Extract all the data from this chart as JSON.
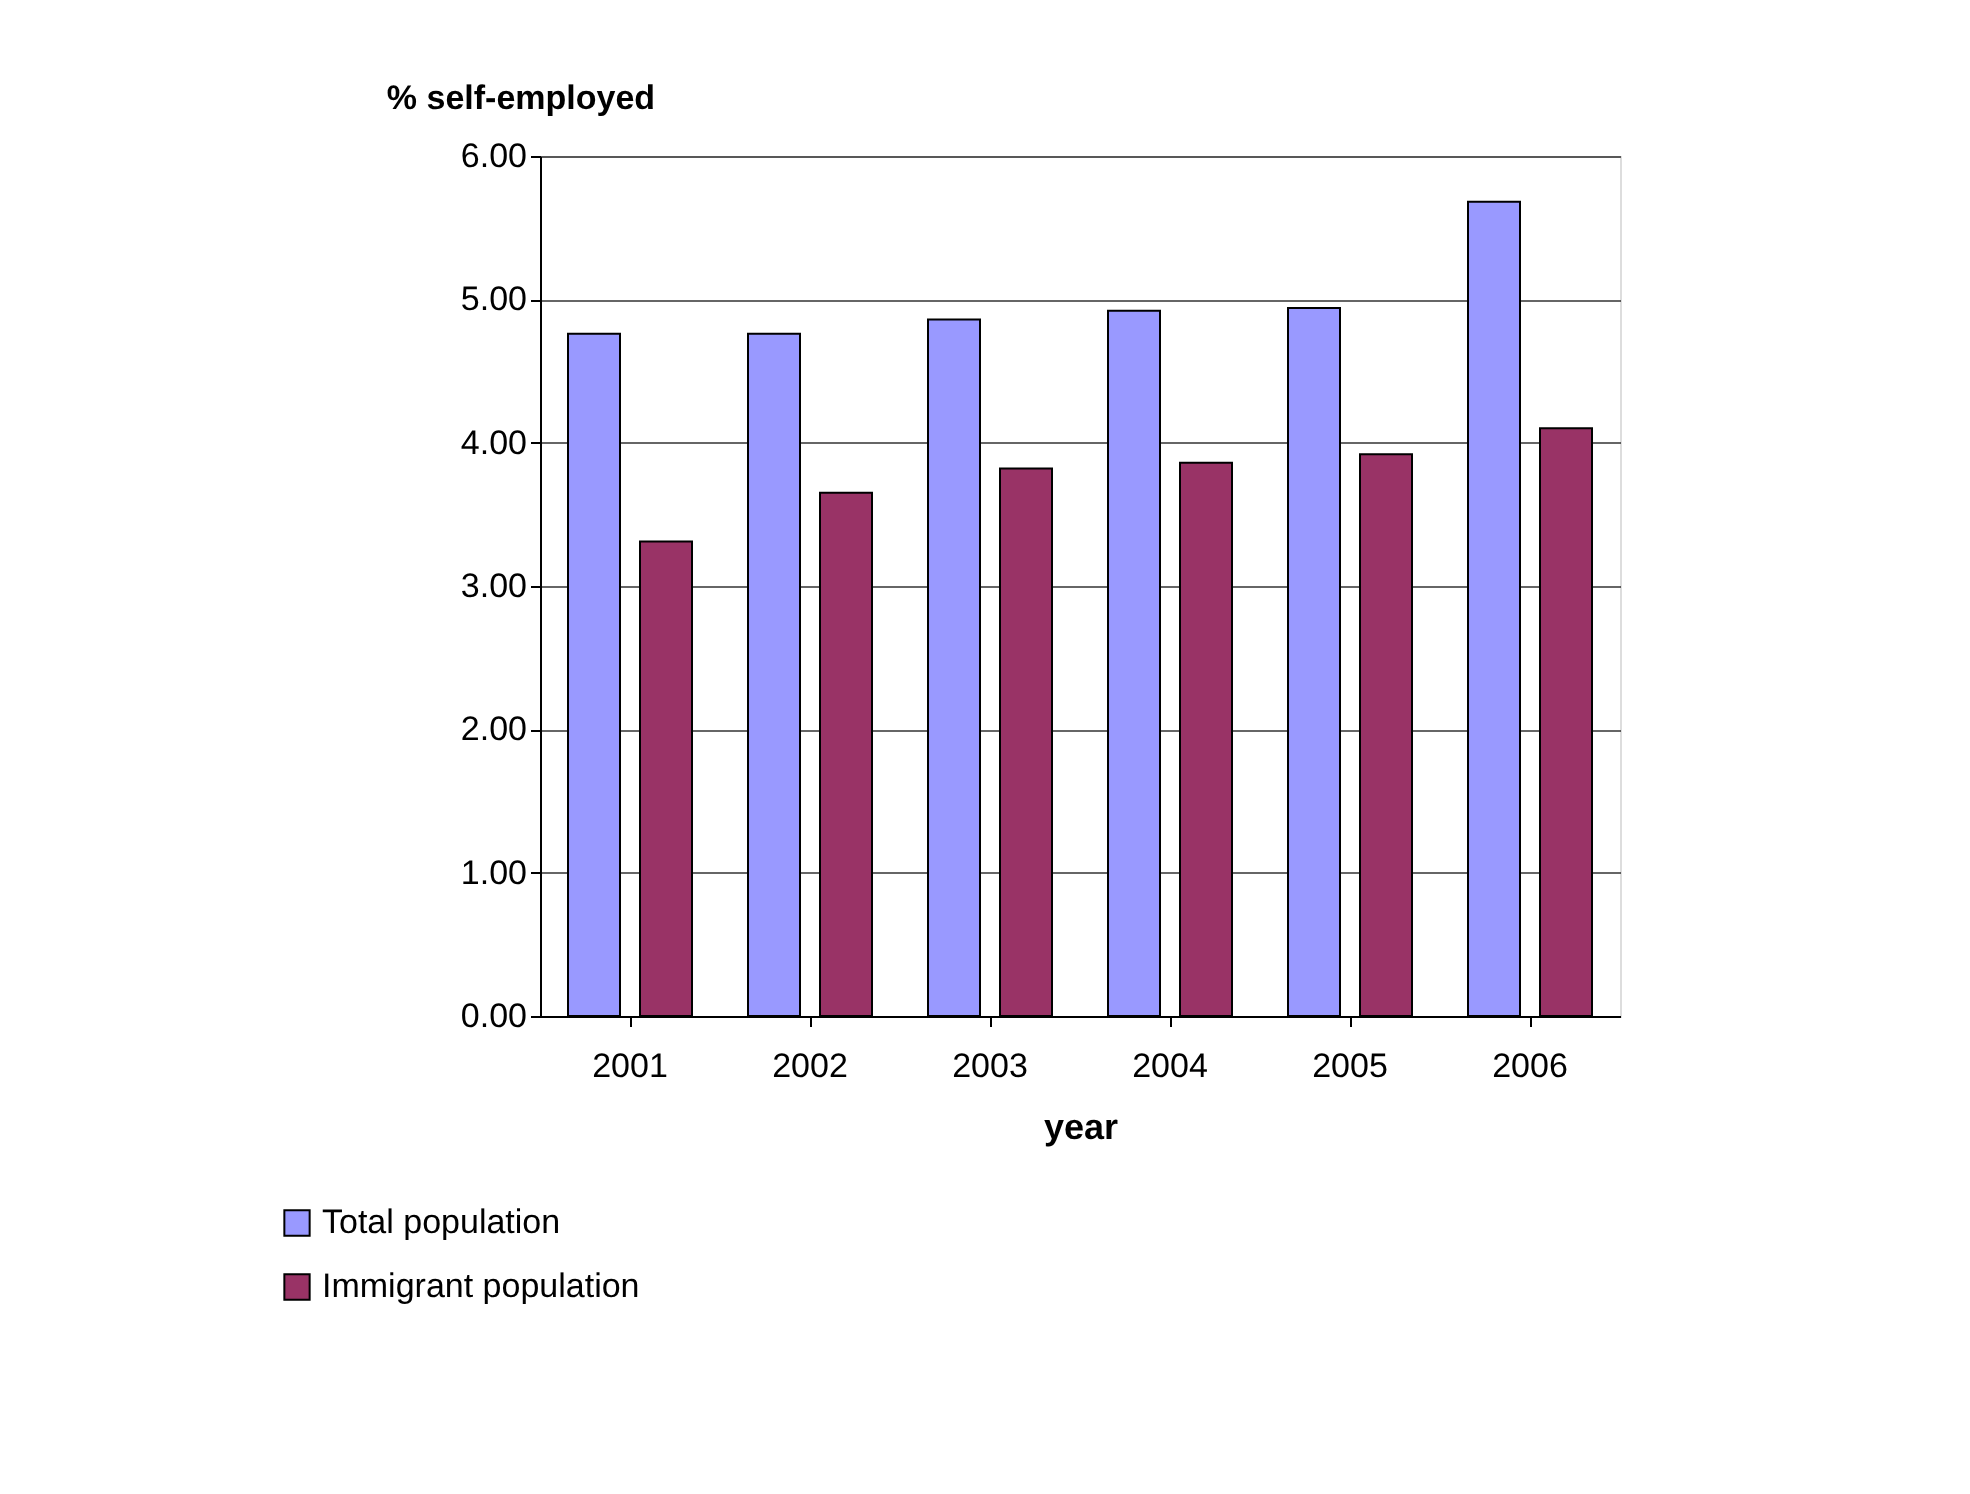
{
  "chart_data": {
    "type": "bar",
    "ylabel": "% self-employed",
    "xlabel": "year",
    "categories": [
      "2001",
      "2002",
      "2003",
      "2004",
      "2005",
      "2006"
    ],
    "series": [
      {
        "name": "Total population",
        "color": "#9999ff",
        "values": [
          4.76,
          4.76,
          4.86,
          4.92,
          4.94,
          5.68
        ]
      },
      {
        "name": "Immigrant population",
        "color": "#993366",
        "values": [
          3.31,
          3.65,
          3.82,
          3.86,
          3.92,
          4.1
        ]
      }
    ],
    "ylim": [
      0,
      6
    ],
    "yticks": [
      {
        "value": 0,
        "label": "0.00"
      },
      {
        "value": 1,
        "label": "1.00"
      },
      {
        "value": 2,
        "label": "2.00"
      },
      {
        "value": 3,
        "label": "3.00"
      },
      {
        "value": 4,
        "label": "4.00"
      },
      {
        "value": 5,
        "label": "5.00"
      },
      {
        "value": 6,
        "label": "6.00"
      }
    ],
    "grid": "y",
    "legend": "bottom left"
  }
}
